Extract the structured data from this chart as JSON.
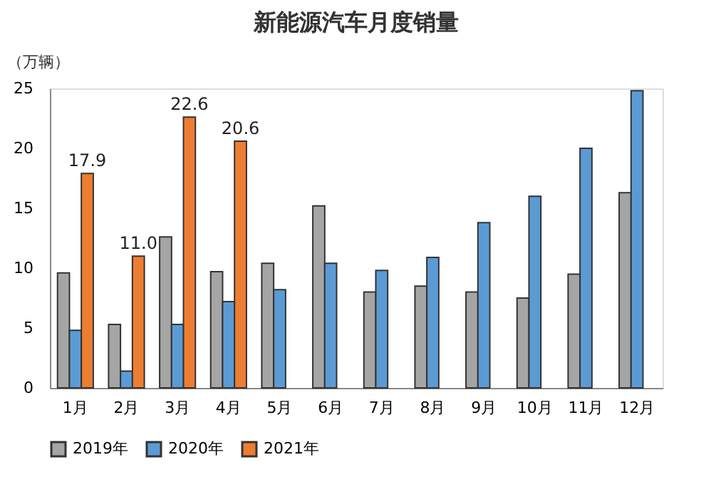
{
  "chart_data": {
    "type": "bar",
    "title": "新能源汽车月度销量",
    "ylabel": "（万辆）",
    "categories": [
      "1月",
      "2月",
      "3月",
      "4月",
      "5月",
      "6月",
      "7月",
      "8月",
      "9月",
      "10月",
      "11月",
      "12月"
    ],
    "series": [
      {
        "name": "2019年",
        "color": "#a5a5a5",
        "values": [
          9.6,
          5.3,
          12.6,
          9.7,
          10.4,
          15.2,
          8.0,
          8.5,
          8.0,
          7.5,
          9.5,
          16.3
        ]
      },
      {
        "name": "2020年",
        "color": "#5b9bd5",
        "values": [
          4.8,
          1.4,
          5.3,
          7.2,
          8.2,
          10.4,
          9.8,
          10.9,
          13.8,
          16.0,
          20.0,
          24.8
        ]
      },
      {
        "name": "2021年",
        "color": "#ed7d31",
        "values": [
          17.9,
          11.0,
          22.6,
          20.6,
          null,
          null,
          null,
          null,
          null,
          null,
          null,
          null
        ],
        "value_labels": [
          "17.9",
          "11.0",
          "22.6",
          "20.6",
          null,
          null,
          null,
          null,
          null,
          null,
          null,
          null
        ]
      }
    ],
    "ylim": [
      0,
      25
    ],
    "yticks": [
      0,
      5,
      10,
      15,
      20,
      25
    ],
    "grid": false,
    "legend": "bottom"
  }
}
